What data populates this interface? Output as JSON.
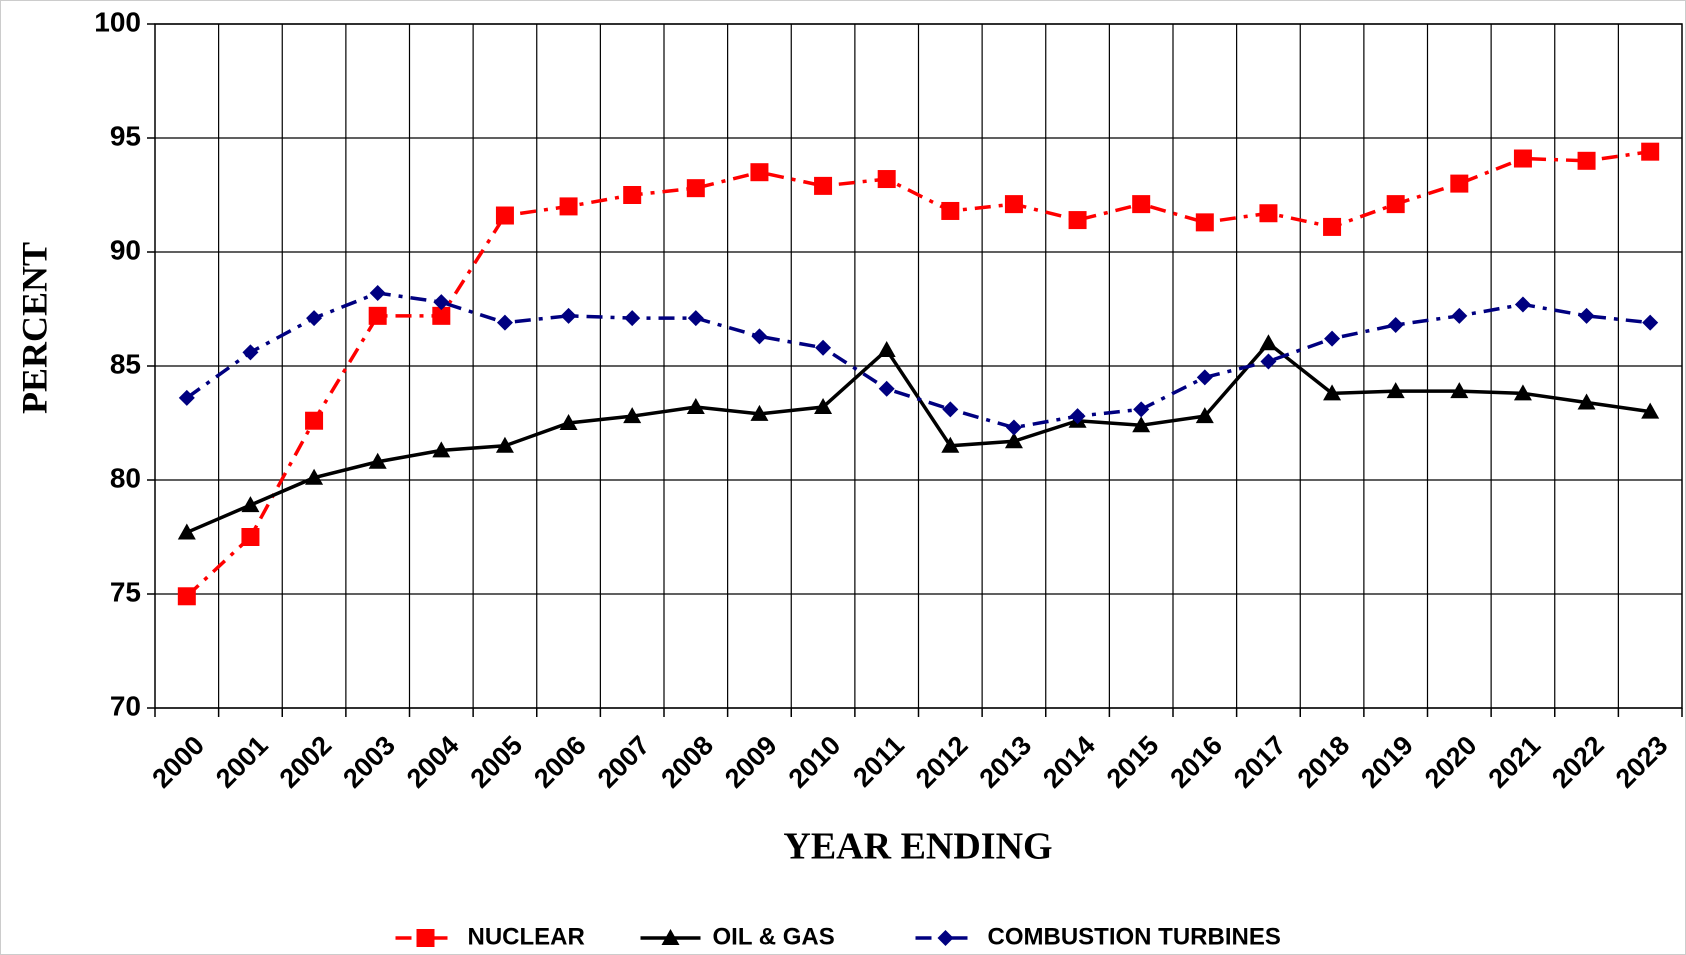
{
  "chart_data": {
    "type": "line",
    "x_label": "YEAR ENDING",
    "y_label": "PERCENT",
    "categories": [
      "2000",
      "2001",
      "2002",
      "2003",
      "2004",
      "2005",
      "2006",
      "2007",
      "2008",
      "2009",
      "2010",
      "2011",
      "2012",
      "2013",
      "2014",
      "2015",
      "2016",
      "2017",
      "2018",
      "2019",
      "2020",
      "2021",
      "2022",
      "2023"
    ],
    "series": [
      {
        "name": "NUCLEAR",
        "color": "#ff0000",
        "marker": "square",
        "dash": "dash-dot",
        "values": [
          74.9,
          77.5,
          82.6,
          87.2,
          87.2,
          91.6,
          92.0,
          92.5,
          92.8,
          93.5,
          92.9,
          93.2,
          91.8,
          92.1,
          91.4,
          92.1,
          91.3,
          91.7,
          91.1,
          92.1,
          93.0,
          94.1,
          94.0,
          94.4
        ]
      },
      {
        "name": "OIL & GAS",
        "color": "#000000",
        "marker": "triangle",
        "dash": "solid",
        "values": [
          77.7,
          78.9,
          80.1,
          80.8,
          81.3,
          81.5,
          82.5,
          82.8,
          83.2,
          82.9,
          83.2,
          85.7,
          81.5,
          81.7,
          82.6,
          82.4,
          82.8,
          86.0,
          83.8,
          83.9,
          83.9,
          83.8,
          83.4,
          83.0
        ]
      },
      {
        "name": "COMBUSTION TURBINES",
        "color": "#000080",
        "marker": "diamond",
        "dash": "dash-dot",
        "values": [
          83.6,
          85.6,
          87.1,
          88.2,
          87.8,
          86.9,
          87.2,
          87.1,
          87.1,
          86.3,
          85.8,
          84.0,
          83.1,
          82.3,
          82.8,
          83.1,
          84.5,
          85.2,
          86.2,
          86.8,
          87.2,
          87.7,
          87.2,
          86.9
        ]
      }
    ],
    "ylim": [
      70,
      100
    ],
    "yticks": [
      70,
      75,
      80,
      85,
      90,
      95,
      100
    ],
    "grid": true,
    "legend": "bottom"
  }
}
